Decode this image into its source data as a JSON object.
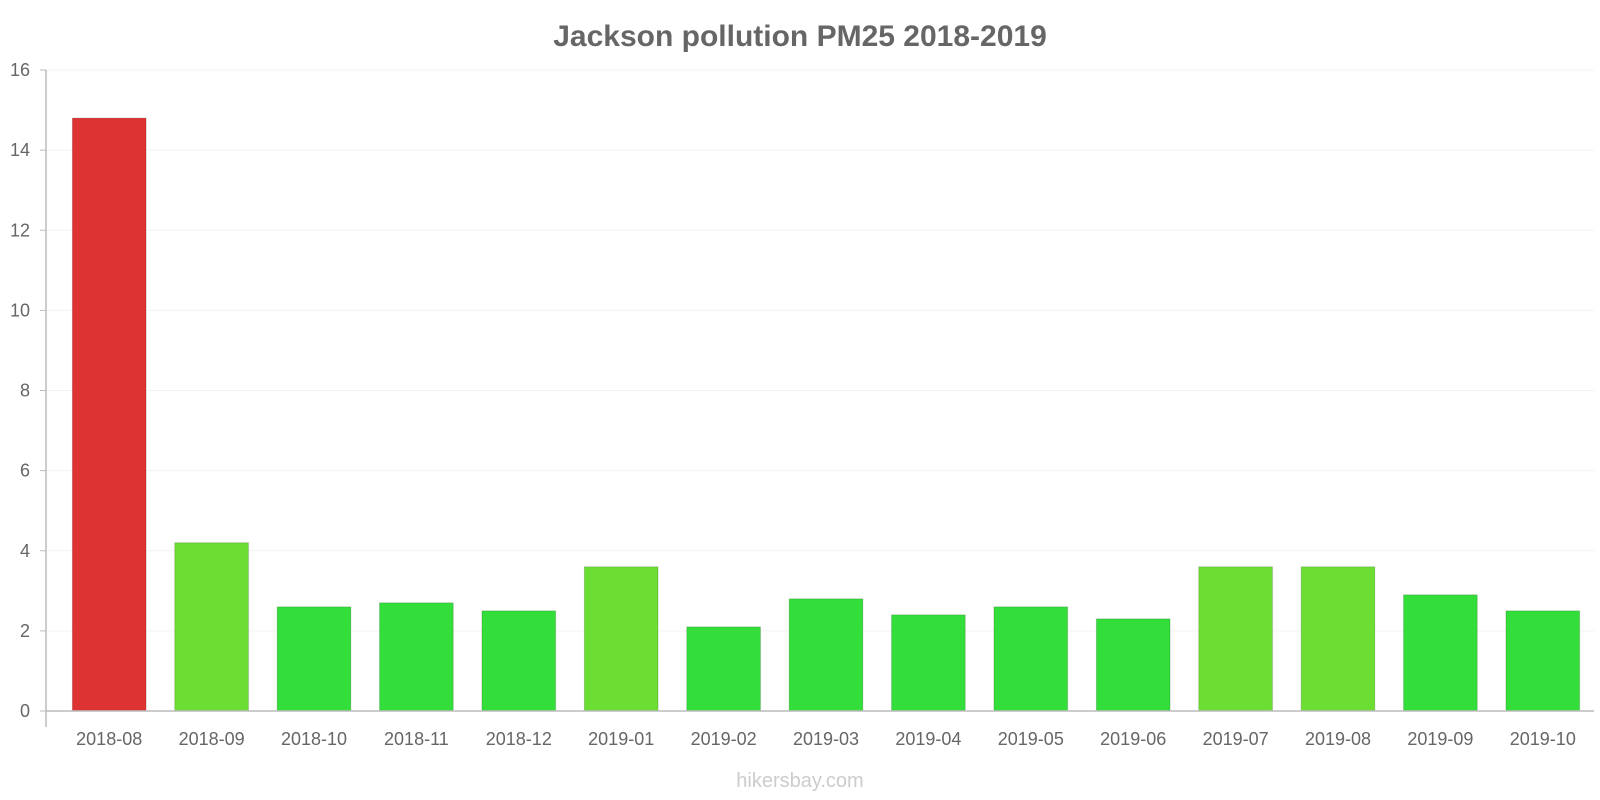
{
  "chart_data": {
    "type": "bar",
    "title": "Jackson pollution PM25 2018-2019",
    "xlabel": "",
    "ylabel": "",
    "ylim": [
      0,
      16
    ],
    "yticks": [
      0,
      2,
      4,
      6,
      8,
      10,
      12,
      14,
      16
    ],
    "grid": true,
    "legend": "none",
    "categories": [
      "2018-08",
      "2018-09",
      "2018-10",
      "2018-11",
      "2018-12",
      "2019-01",
      "2019-02",
      "2019-03",
      "2019-04",
      "2019-05",
      "2019-06",
      "2019-07",
      "2019-08",
      "2019-09",
      "2019-10"
    ],
    "values": [
      14.8,
      4.2,
      2.6,
      2.7,
      2.5,
      3.6,
      2.1,
      2.8,
      2.4,
      2.6,
      2.3,
      3.6,
      3.6,
      2.9,
      2.5
    ],
    "colors": [
      "#dd3333",
      "#6bdd33",
      "#33dd3a",
      "#33dd3a",
      "#33dd3a",
      "#6bdd33",
      "#33dd3a",
      "#33dd3a",
      "#33dd3a",
      "#33dd3a",
      "#33dd3a",
      "#6bdd33",
      "#6bdd33",
      "#33dd3a",
      "#33dd3a"
    ]
  },
  "watermark": "hikersbay.com"
}
